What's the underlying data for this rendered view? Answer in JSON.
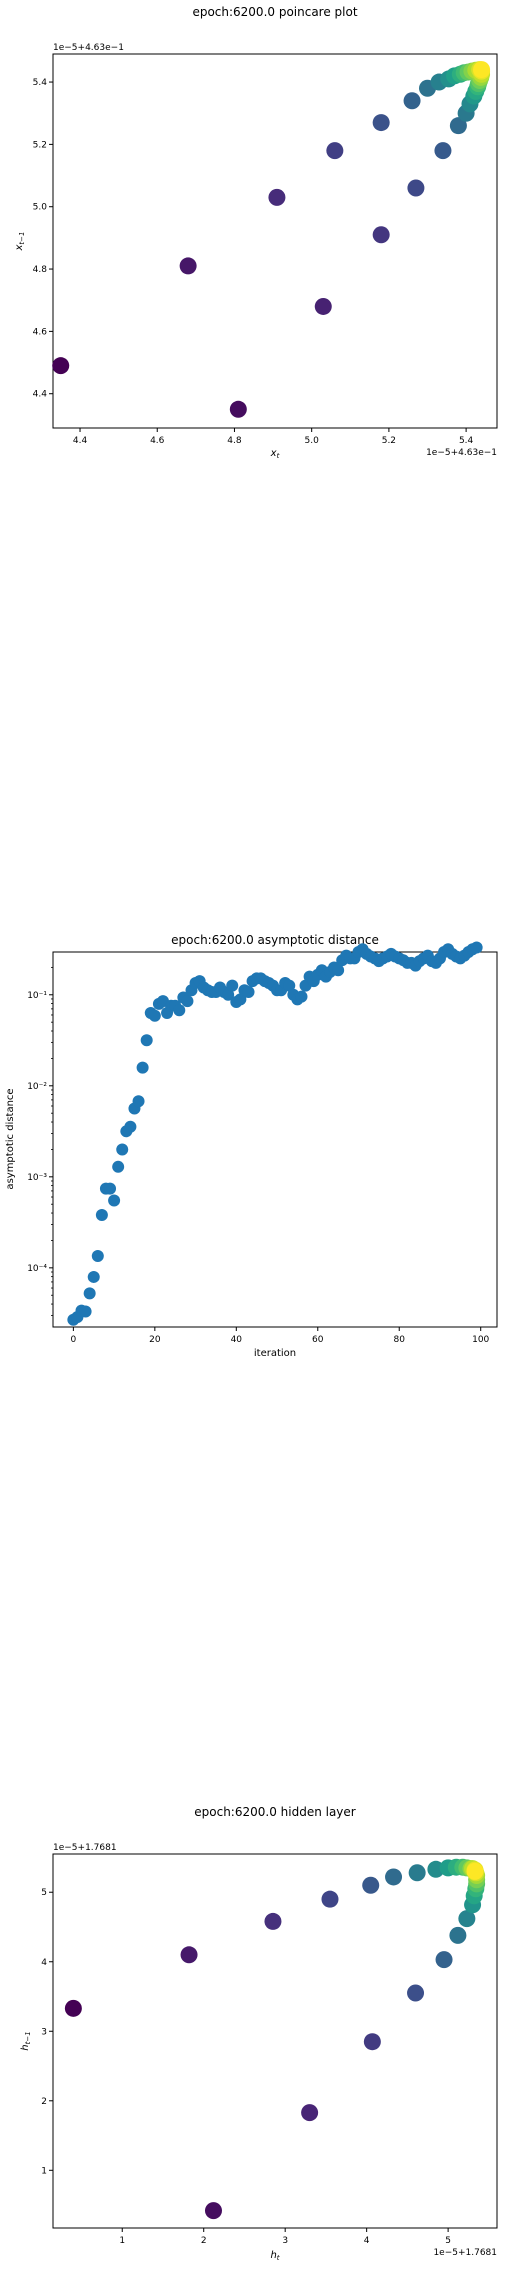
{
  "chart_data": [
    {
      "type": "scatter",
      "title": "epoch:6200.0 poincare plot",
      "xlabel": "x_t",
      "ylabel": "x_{t-1}",
      "x_offset_label": "1e−5+4.63e−1",
      "y_offset_label": "1e−5+4.63e−1",
      "xlim": [
        4.33,
        5.48
      ],
      "ylim": [
        4.29,
        5.49
      ],
      "xticks": [
        4.4,
        4.6,
        4.8,
        5.0,
        5.2,
        5.4
      ],
      "xtick_labels": [
        "4.4",
        "4.6",
        "4.8",
        "5.0",
        "5.2",
        "5.4"
      ],
      "yticks": [
        4.4,
        4.6,
        4.8,
        5.0,
        5.2,
        5.4
      ],
      "ytick_labels": [
        "4.4",
        "4.6",
        "4.8",
        "5.0",
        "5.2",
        "5.4"
      ],
      "color_map": "viridis",
      "points": [
        [
          4.35,
          4.49
        ],
        [
          4.81,
          4.35
        ],
        [
          4.68,
          4.81
        ],
        [
          5.03,
          4.68
        ],
        [
          4.91,
          5.03
        ],
        [
          5.18,
          4.91
        ],
        [
          5.06,
          5.18
        ],
        [
          5.27,
          5.06
        ],
        [
          5.18,
          5.27
        ],
        [
          5.34,
          5.18
        ],
        [
          5.26,
          5.34
        ],
        [
          5.38,
          5.26
        ],
        [
          5.3,
          5.38
        ],
        [
          5.4,
          5.3
        ],
        [
          5.33,
          5.4
        ],
        [
          5.41,
          5.33
        ],
        [
          5.355,
          5.41
        ],
        [
          5.42,
          5.355
        ],
        [
          5.37,
          5.42
        ],
        [
          5.425,
          5.37
        ],
        [
          5.385,
          5.425
        ],
        [
          5.43,
          5.385
        ],
        [
          5.395,
          5.43
        ],
        [
          5.432,
          5.395
        ],
        [
          5.405,
          5.432
        ],
        [
          5.435,
          5.405
        ],
        [
          5.415,
          5.435
        ],
        [
          5.438,
          5.415
        ],
        [
          5.425,
          5.438
        ],
        [
          5.44,
          5.425
        ],
        [
          5.435,
          5.44
        ],
        [
          5.44,
          5.435
        ],
        [
          5.44,
          5.44
        ]
      ]
    },
    {
      "type": "scatter",
      "title": "epoch:6200.0 asymptotic distance",
      "xlabel": "iteration",
      "ylabel": "asymptotic distance",
      "yscale": "log",
      "xlim": [
        -5,
        104
      ],
      "ylim_log10": [
        -4.65,
        -0.53
      ],
      "xticks": [
        0,
        20,
        40,
        60,
        80,
        100
      ],
      "xtick_labels": [
        "0",
        "20",
        "40",
        "60",
        "80",
        "100"
      ],
      "ytick_exponents": [
        -4,
        -3,
        -2,
        -1
      ],
      "ytick_labels": [
        "10⁻⁴",
        "10⁻³",
        "10⁻²",
        "10⁻¹"
      ],
      "color": "#1f77b4",
      "log10_values": [
        -4.57,
        -4.54,
        -4.47,
        -4.48,
        -4.28,
        -4.1,
        -3.87,
        -3.42,
        -3.13,
        -3.13,
        -3.26,
        -2.89,
        -2.7,
        -2.5,
        -2.45,
        -2.25,
        -2.17,
        -1.8,
        -1.5,
        -1.2,
        -1.23,
        -1.1,
        -1.07,
        -1.2,
        -1.12,
        -1.12,
        -1.17,
        -1.03,
        -1.07,
        -0.95,
        -0.87,
        -0.85,
        -0.92,
        -0.95,
        -0.97,
        -0.97,
        -0.92,
        -0.97,
        -1.0,
        -0.9,
        -1.08,
        -1.05,
        -0.95,
        -0.97,
        -0.85,
        -0.82,
        -0.82,
        -0.85,
        -0.87,
        -0.9,
        -0.95,
        -0.95,
        -0.87,
        -0.9,
        -1.0,
        -1.05,
        -1.02,
        -0.9,
        -0.8,
        -0.85,
        -0.78,
        -0.73,
        -0.8,
        -0.75,
        -0.7,
        -0.73,
        -0.62,
        -0.57,
        -0.6,
        -0.6,
        -0.53,
        -0.5,
        -0.55,
        -0.58,
        -0.6,
        -0.63,
        -0.6,
        -0.58,
        -0.55,
        -0.58,
        -0.6,
        -0.62,
        -0.65,
        -0.65,
        -0.68,
        -0.63,
        -0.6,
        -0.57,
        -0.63,
        -0.65,
        -0.6,
        -0.53,
        -0.5,
        -0.55,
        -0.58,
        -0.6,
        -0.57,
        -0.53,
        -0.5,
        -0.48
      ]
    },
    {
      "type": "scatter",
      "title": "epoch:6200.0 hidden layer",
      "xlabel": "h_t",
      "ylabel": "h_{t-1}",
      "x_offset_label": "1e−5+1.7681",
      "y_offset_label": "1e−5+1.7681",
      "xlim": [
        0.15,
        5.6
      ],
      "ylim": [
        0.17,
        5.55
      ],
      "xticks": [
        1,
        2,
        3,
        4,
        5
      ],
      "xtick_labels": [
        "1",
        "2",
        "3",
        "4",
        "5"
      ],
      "yticks": [
        1,
        2,
        3,
        4,
        5
      ],
      "ytick_labels": [
        "1",
        "2",
        "3",
        "4",
        "5"
      ],
      "color_map": "viridis",
      "points": [
        [
          0.4,
          3.33
        ],
        [
          2.12,
          0.42
        ],
        [
          1.82,
          4.1
        ],
        [
          3.3,
          1.83
        ],
        [
          2.85,
          4.58
        ],
        [
          4.07,
          2.85
        ],
        [
          3.55,
          4.9
        ],
        [
          4.6,
          3.55
        ],
        [
          4.05,
          5.1
        ],
        [
          4.95,
          4.03
        ],
        [
          4.33,
          5.22
        ],
        [
          5.12,
          4.38
        ],
        [
          4.62,
          5.28
        ],
        [
          5.23,
          4.62
        ],
        [
          4.85,
          5.33
        ],
        [
          5.3,
          4.82
        ],
        [
          5.0,
          5.35
        ],
        [
          5.32,
          4.95
        ],
        [
          5.1,
          5.36
        ],
        [
          5.34,
          5.05
        ],
        [
          5.18,
          5.36
        ],
        [
          5.35,
          5.12
        ],
        [
          5.23,
          5.35
        ],
        [
          5.35,
          5.18
        ],
        [
          5.28,
          5.34
        ],
        [
          5.35,
          5.24
        ],
        [
          5.3,
          5.34
        ],
        [
          5.34,
          5.28
        ],
        [
          5.33,
          5.32
        ],
        [
          5.33,
          5.3
        ]
      ]
    }
  ]
}
